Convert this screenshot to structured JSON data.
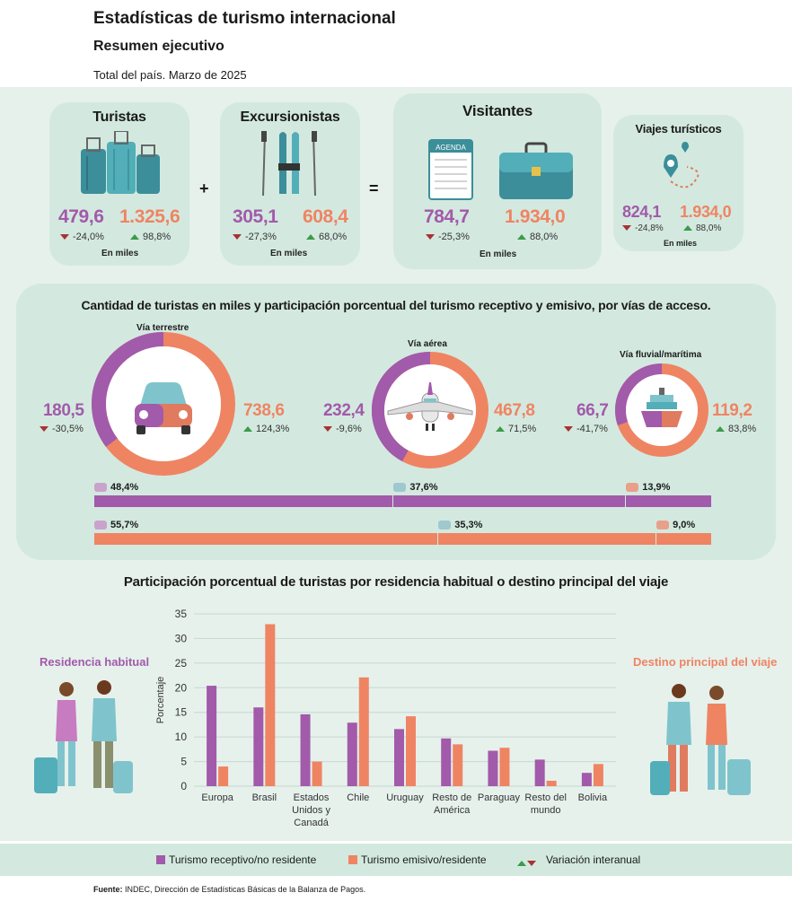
{
  "header": {
    "title": "Estadísticas de turismo internacional",
    "subtitle": "Resumen ejecutivo",
    "period": "Total del país. Marzo de 2025"
  },
  "summary": {
    "turistas": {
      "title": "Turistas",
      "receptivo": "479,6",
      "emisivo": "1.325,6",
      "var_receptivo": "-24,0%",
      "var_emisivo": "98,8%",
      "unit": "En miles"
    },
    "excursionistas": {
      "title": "Excursionistas",
      "receptivo": "305,1",
      "emisivo": "608,4",
      "var_receptivo": "-27,3%",
      "var_emisivo": "68,0%",
      "unit": "En miles"
    },
    "visitantes": {
      "title": "Visitantes",
      "receptivo": "784,7",
      "emisivo": "1.934,0",
      "var_receptivo": "-25,3%",
      "var_emisivo": "88,0%",
      "unit": "En miles",
      "agenda_label": "AGENDA"
    },
    "viajes": {
      "title": "Viajes turísticos",
      "receptivo": "824,1",
      "emisivo": "1.934,0",
      "var_receptivo": "-24,8%",
      "var_emisivo": "88,0%",
      "unit": "En miles"
    },
    "plus": "+",
    "equals": "="
  },
  "access": {
    "title": "Cantidad de turistas en miles y participación porcentual del turismo receptivo y emisivo, por vías de acceso.",
    "terrestre": {
      "label": "Vía terrestre",
      "receptivo": "180,5",
      "var_receptivo": "-30,5%",
      "emisivo": "738,6",
      "var_emisivo": "124,3%"
    },
    "aerea": {
      "label": "Vía aérea",
      "receptivo": "232,4",
      "var_receptivo": "-9,6%",
      "emisivo": "467,8",
      "var_emisivo": "71,5%"
    },
    "fluvial": {
      "label": "Vía fluvial/marítima",
      "receptivo": "66,7",
      "var_receptivo": "-41,7%",
      "emisivo": "119,2",
      "var_emisivo": "83,8%"
    },
    "bar_receptivo": [
      {
        "icon": "plane-icon",
        "value": 48.4,
        "label": "48,4%"
      },
      {
        "icon": "car-icon",
        "value": 37.6,
        "label": "37,6%"
      },
      {
        "icon": "ship-icon",
        "value": 13.9,
        "label": "13,9%"
      }
    ],
    "bar_emisivo": [
      {
        "icon": "car-icon",
        "value": 55.7,
        "label": "55,7%"
      },
      {
        "icon": "plane-icon",
        "value": 35.3,
        "label": "35,3%"
      },
      {
        "icon": "ship-icon",
        "value": 9.0,
        "label": "9,0%"
      }
    ]
  },
  "residence": {
    "title": "Participación porcentual de turistas por residencia habitual o destino principal del viaje",
    "left_label": "Residencia habitual",
    "right_label": "Destino principal del viaje"
  },
  "colors": {
    "receptivo": "#a25aaa",
    "emisivo": "#ef8463",
    "panel": "#e6f1ec",
    "card": "#d3e9df",
    "down": "#a83232",
    "up": "#3d9a4b"
  },
  "chart_data": {
    "type": "bar",
    "ylabel": "Porcentaje",
    "ylim": [
      0,
      35
    ],
    "yticks": [
      0,
      5,
      10,
      15,
      20,
      25,
      30,
      35
    ],
    "categories": [
      "Europa",
      "Brasil",
      "Estados Unidos y Canadá",
      "Chile",
      "Uruguay",
      "Resto de América",
      "Paraguay",
      "Resto del mundo",
      "Bolivia"
    ],
    "category_lines": [
      [
        "Europa"
      ],
      [
        "Brasil"
      ],
      [
        "Estados",
        "Unidos y",
        "Canadá"
      ],
      [
        "Chile"
      ],
      [
        "Uruguay"
      ],
      [
        "Resto de",
        "América"
      ],
      [
        "Paraguay"
      ],
      [
        "Resto del",
        "mundo"
      ],
      [
        "Bolivia"
      ]
    ],
    "series": [
      {
        "name": "Turismo receptivo/no residente",
        "values": [
          20.4,
          16.0,
          14.6,
          12.9,
          11.6,
          9.7,
          7.2,
          5.4,
          2.7
        ]
      },
      {
        "name": "Turismo emisivo/residente",
        "values": [
          4.0,
          32.9,
          5.0,
          22.1,
          14.2,
          8.5,
          7.8,
          1.1,
          4.5
        ]
      }
    ],
    "legend": [
      "Turismo receptivo/no residente",
      "Turismo emisivo/residente",
      "Variación interanual"
    ],
    "legend_position": "bottom"
  },
  "source": {
    "label": "Fuente:",
    "text": "INDEC, Dirección de Estadísticas Básicas de la Balanza de Pagos."
  }
}
